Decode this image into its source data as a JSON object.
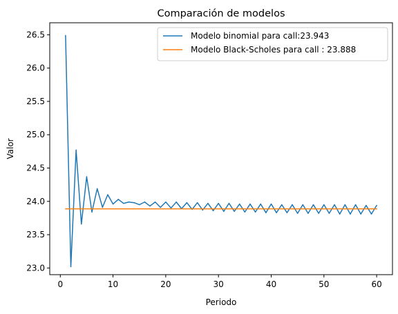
{
  "chart_data": {
    "type": "line",
    "title": "Comparación de modelos",
    "xlabel": "Periodo",
    "ylabel": "Valor",
    "xlim": [
      -2,
      63
    ],
    "ylim": [
      22.9,
      26.68
    ],
    "xticks": [
      0,
      10,
      20,
      30,
      40,
      50,
      60
    ],
    "yticks": [
      23.0,
      23.5,
      24.0,
      24.5,
      25.0,
      25.5,
      26.0,
      26.5
    ],
    "ytick_labels": [
      "23.0",
      "23.5",
      "24.0",
      "24.5",
      "25.0",
      "25.5",
      "26.0",
      "26.5"
    ],
    "grid": false,
    "legend_position": "top-right",
    "series": [
      {
        "name": "Modelo binomial para call:23.943",
        "color": "#1f77b4",
        "x": [
          1,
          2,
          3,
          4,
          5,
          6,
          7,
          8,
          9,
          10,
          11,
          12,
          13,
          14,
          15,
          16,
          17,
          18,
          19,
          20,
          21,
          22,
          23,
          24,
          25,
          26,
          27,
          28,
          29,
          30,
          31,
          32,
          33,
          34,
          35,
          36,
          37,
          38,
          39,
          40,
          41,
          42,
          43,
          44,
          45,
          46,
          47,
          48,
          49,
          50,
          51,
          52,
          53,
          54,
          55,
          56,
          57,
          58,
          59,
          60
        ],
        "values": [
          26.49,
          23.02,
          24.77,
          23.66,
          24.37,
          23.84,
          24.19,
          23.91,
          24.1,
          23.96,
          24.03,
          23.97,
          23.99,
          23.98,
          23.95,
          23.99,
          23.93,
          23.99,
          23.91,
          23.99,
          23.9,
          23.99,
          23.89,
          23.98,
          23.88,
          23.98,
          23.87,
          23.97,
          23.86,
          23.97,
          23.85,
          23.97,
          23.85,
          23.96,
          23.84,
          23.96,
          23.84,
          23.96,
          23.83,
          23.96,
          23.83,
          23.95,
          23.83,
          23.95,
          23.82,
          23.95,
          23.82,
          23.95,
          23.82,
          23.95,
          23.82,
          23.95,
          23.81,
          23.95,
          23.81,
          23.95,
          23.81,
          23.94,
          23.81,
          23.94
        ]
      },
      {
        "name": "Modelo Black-Scholes para call : 23.888",
        "color": "#ff7f0e",
        "x": [
          1,
          60
        ],
        "values": [
          23.888,
          23.888
        ]
      }
    ]
  }
}
